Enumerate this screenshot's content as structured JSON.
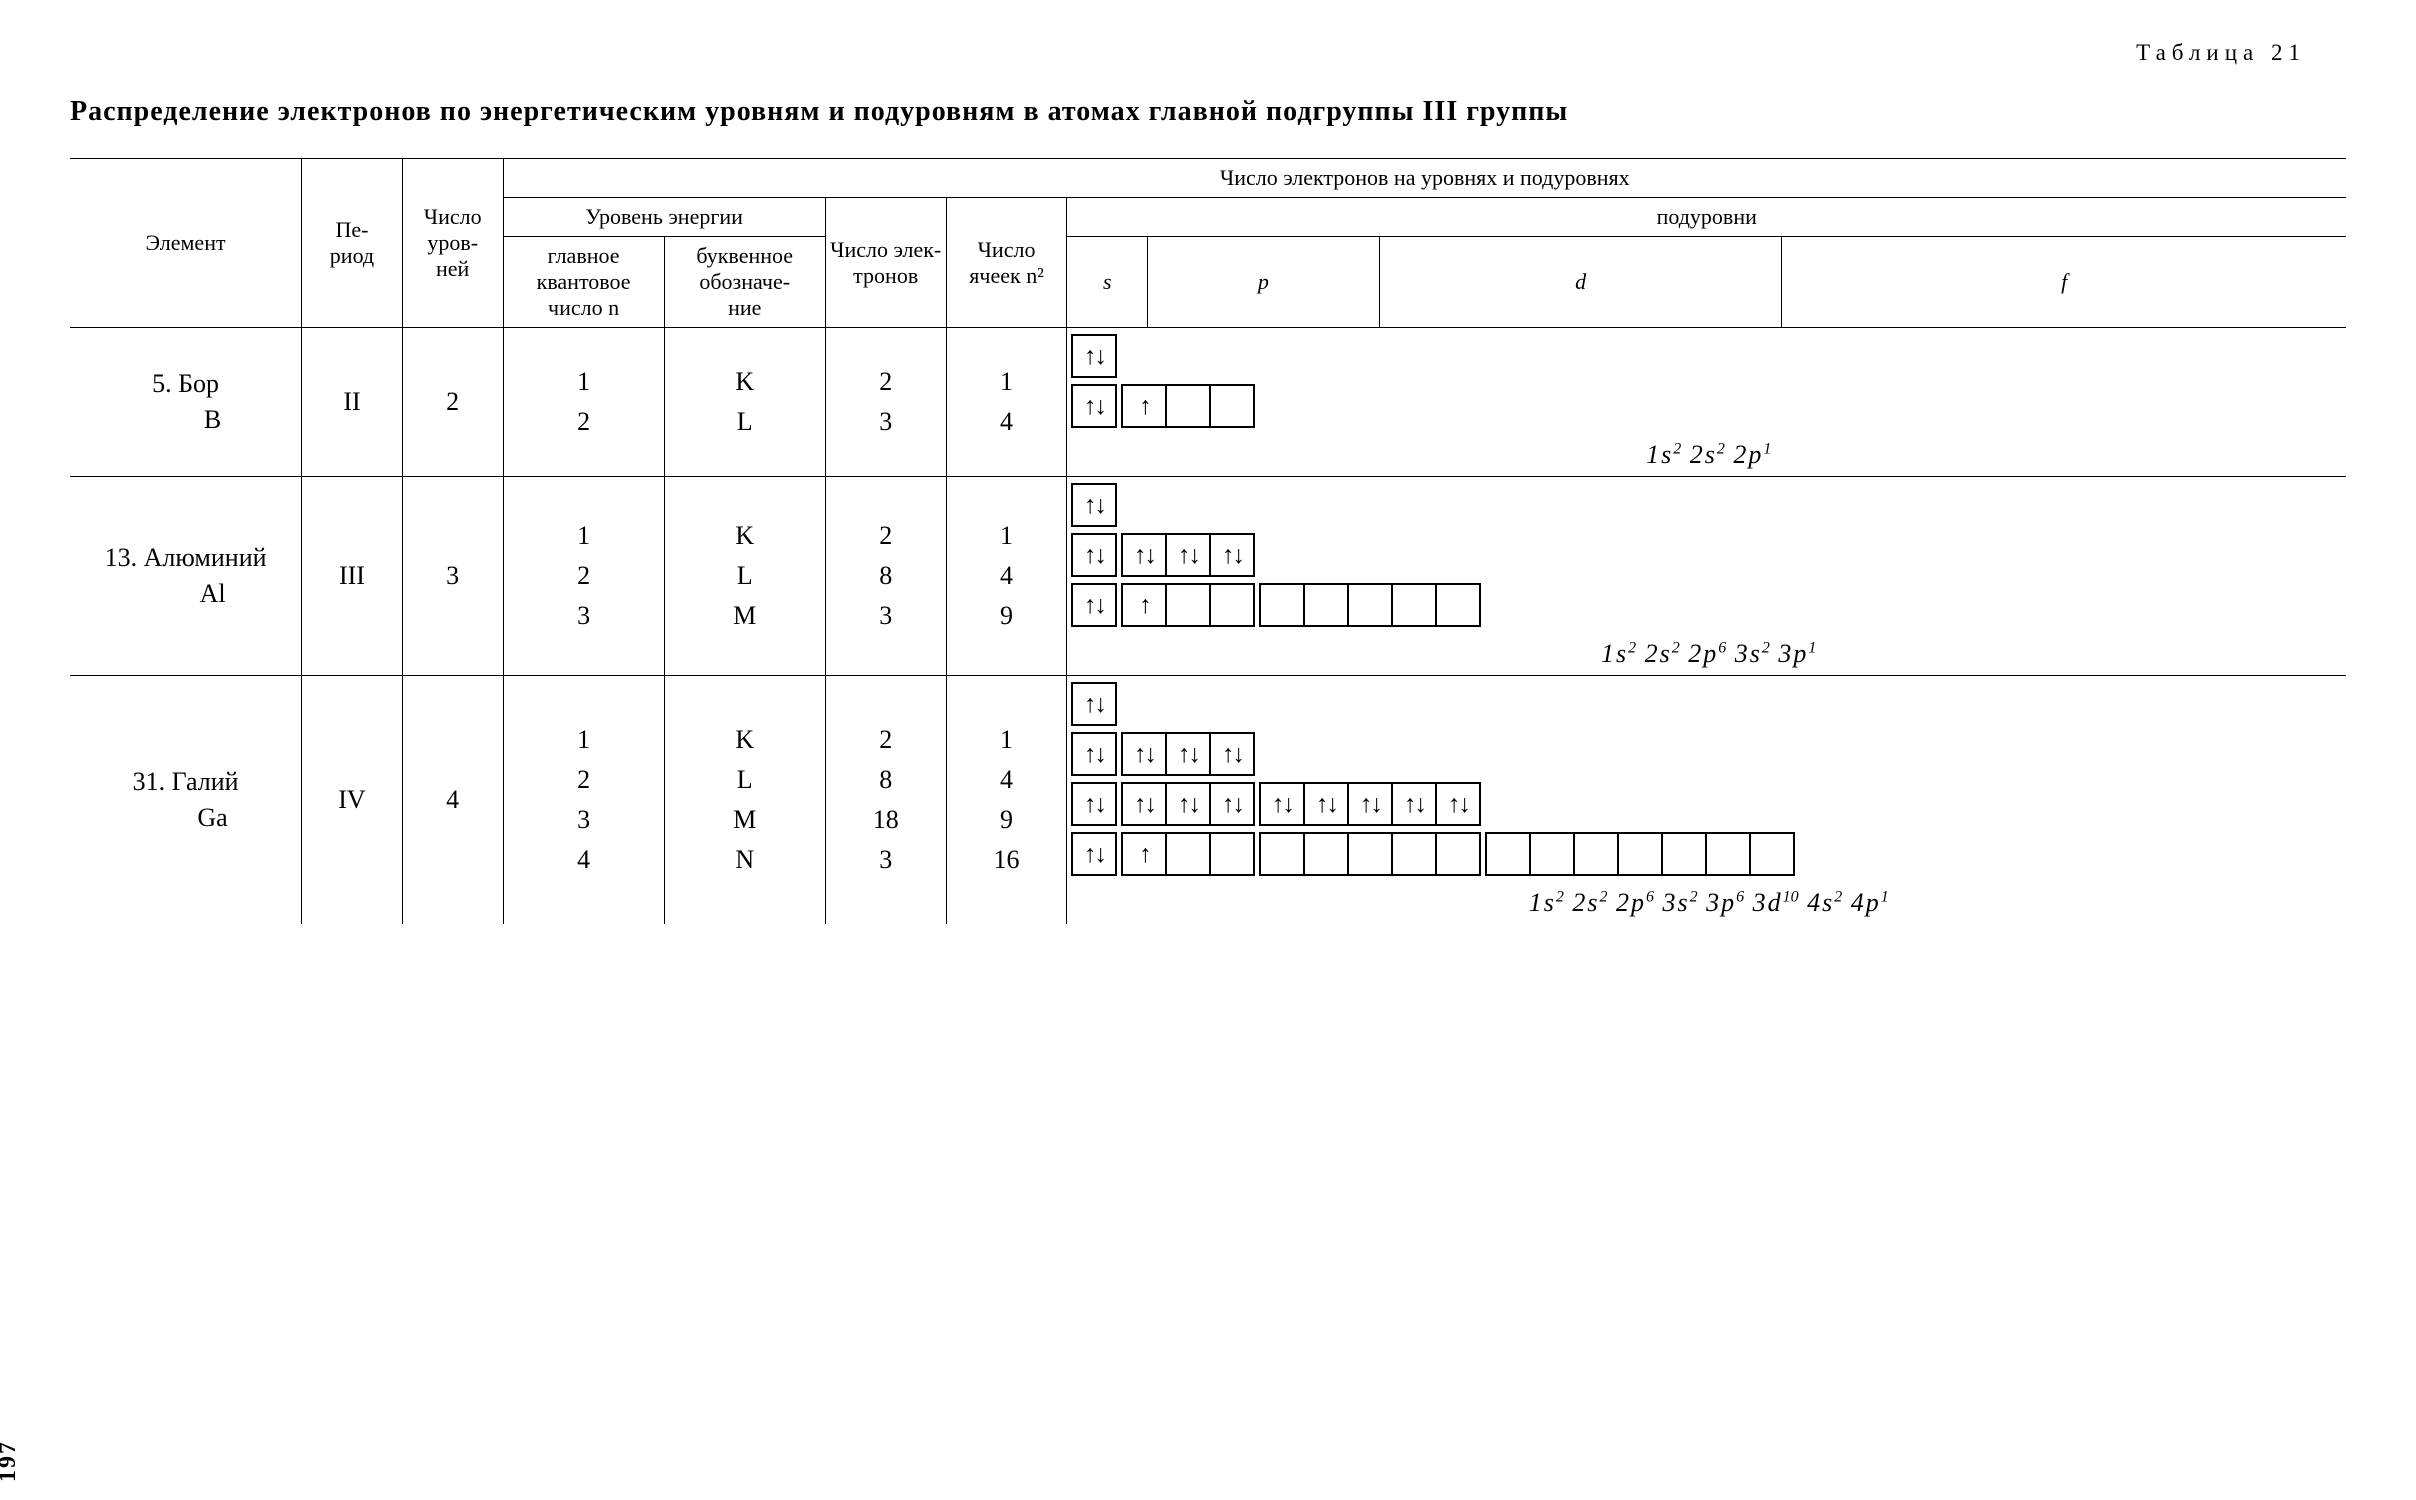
{
  "table_label": "Таблица 21",
  "title": "Распределение электронов по энергетическим уровням и подуровням в атомах главной подгруппы III группы",
  "page_number": "197",
  "headers": {
    "element": "Элемент",
    "period": "Пе-\nриод",
    "num_levels": "Число уров-\nней",
    "electron_count_header": "Число электронов на уровнях и подуровнях",
    "energy_level": "Уровень энергии",
    "main_q": "главное квантовое число n",
    "letter": "буквенное обозначе-\nние",
    "n_electrons": "Число элек-\nтронов",
    "n_cells": "Число ячеек n²",
    "sublevels": "подуровни",
    "s": "s",
    "p": "p",
    "d": "d",
    "f": "f"
  },
  "col_widths": {
    "element": 230,
    "period": 100,
    "levels": 100,
    "mainq": 160,
    "letter": 160,
    "nelec": 120,
    "ncells": 120,
    "s": 80,
    "p": 230,
    "d": 400,
    "f": 560
  },
  "elements": [
    {
      "label_line1": "5. Бор",
      "label_line2": "B",
      "period": "II",
      "levels": "2",
      "main_q": [
        "1",
        "2"
      ],
      "letters": [
        "K",
        "L"
      ],
      "n_electrons": [
        "2",
        "3"
      ],
      "n_cells": [
        "1",
        "4"
      ],
      "orbitals": [
        [
          {
            "n": 1,
            "fill": [
              "ud"
            ]
          }
        ],
        [
          {
            "n": 1,
            "fill": [
              "ud"
            ]
          },
          {
            "n": 3,
            "fill": [
              "u",
              "",
              ""
            ]
          }
        ]
      ],
      "config_html": "1s<sup>2</sup> 2s<sup>2</sup> 2p<sup>1</sup>"
    },
    {
      "label_line1": "13. Алюминий",
      "label_line2": "Al",
      "period": "III",
      "levels": "3",
      "main_q": [
        "1",
        "2",
        "3"
      ],
      "letters": [
        "K",
        "L",
        "M"
      ],
      "n_electrons": [
        "2",
        "8",
        "3"
      ],
      "n_cells": [
        "1",
        "4",
        "9"
      ],
      "orbitals": [
        [
          {
            "n": 1,
            "fill": [
              "ud"
            ]
          }
        ],
        [
          {
            "n": 1,
            "fill": [
              "ud"
            ]
          },
          {
            "n": 3,
            "fill": [
              "ud",
              "ud",
              "ud"
            ]
          }
        ],
        [
          {
            "n": 1,
            "fill": [
              "ud"
            ]
          },
          {
            "n": 3,
            "fill": [
              "u",
              "",
              ""
            ]
          },
          {
            "n": 5,
            "fill": [
              "",
              "",
              "",
              "",
              ""
            ]
          }
        ]
      ],
      "config_html": "1s<sup>2</sup> 2s<sup>2</sup> 2p<sup>6</sup> 3s<sup>2</sup> 3p<sup>1</sup>"
    },
    {
      "label_line1": "31. Галий",
      "label_line2": "Ga",
      "period": "IV",
      "levels": "4",
      "main_q": [
        "1",
        "2",
        "3",
        "4"
      ],
      "letters": [
        "K",
        "L",
        "M",
        "N"
      ],
      "n_electrons": [
        "2",
        "8",
        "18",
        "3"
      ],
      "n_cells": [
        "1",
        "4",
        "9",
        "16"
      ],
      "orbitals": [
        [
          {
            "n": 1,
            "fill": [
              "ud"
            ]
          }
        ],
        [
          {
            "n": 1,
            "fill": [
              "ud"
            ]
          },
          {
            "n": 3,
            "fill": [
              "ud",
              "ud",
              "ud"
            ]
          }
        ],
        [
          {
            "n": 1,
            "fill": [
              "ud"
            ]
          },
          {
            "n": 3,
            "fill": [
              "ud",
              "ud",
              "ud"
            ]
          },
          {
            "n": 5,
            "fill": [
              "ud",
              "ud",
              "ud",
              "ud",
              "ud"
            ]
          }
        ],
        [
          {
            "n": 1,
            "fill": [
              "ud"
            ]
          },
          {
            "n": 3,
            "fill": [
              "u",
              "",
              ""
            ]
          },
          {
            "n": 5,
            "fill": [
              "",
              "",
              "",
              "",
              ""
            ]
          },
          {
            "n": 7,
            "fill": [
              "",
              "",
              "",
              "",
              "",
              "",
              ""
            ]
          }
        ]
      ],
      "config_html": "1s<sup>2</sup> 2s<sup>2</sup> 2p<sup>6</sup> 3s<sup>2</sup> 3p<sup>6</sup> 3d<sup>10</sup> 4s<sup>2</sup> 4p<sup>1</sup>"
    }
  ]
}
